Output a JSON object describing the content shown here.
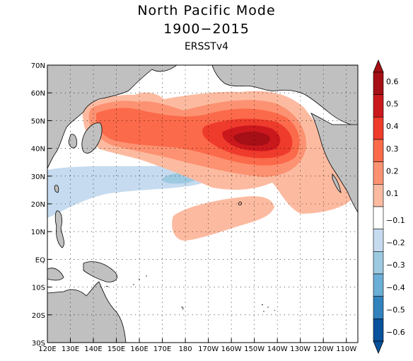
{
  "title": "North Pacific Mode",
  "subtitle": "1900−2015",
  "dataset": "ERSSTv4",
  "map": {
    "lat_labels": [
      "70N",
      "60N",
      "50N",
      "40N",
      "30N",
      "20N",
      "10N",
      "EQ",
      "10S",
      "20S",
      "30S"
    ],
    "lon_labels": [
      "120E",
      "130E",
      "140E",
      "150E",
      "160E",
      "170E",
      "180",
      "170W",
      "160W",
      "150W",
      "140W",
      "130W",
      "120W",
      "110W"
    ],
    "land_color": "#c0c0c0",
    "grid": "dotted"
  },
  "colorbar": {
    "ticks": [
      "0.6",
      "0.5",
      "0.4",
      "0.3",
      "0.2",
      "0.1",
      "−0.1",
      "−0.2",
      "−0.3",
      "−0.4",
      "−0.5",
      "−0.6"
    ],
    "colors": [
      "#a50f15",
      "#cb181d",
      "#ef3b2c",
      "#fb6a4a",
      "#fc9272",
      "#fcbba1",
      "#ffffff",
      "#c6dbef",
      "#9ecae1",
      "#6baed6",
      "#3182bd",
      "#08519c"
    ]
  }
}
